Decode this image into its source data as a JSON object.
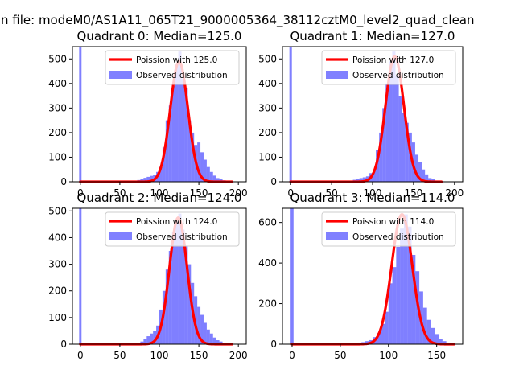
{
  "suptitle": "n file: modeM0/AS1A11_065T21_9000005364_38112cztM0_level2_quad_clean",
  "colors": {
    "poisson_line": "#ff0000",
    "histogram": "#8080ff",
    "axes": "#000000",
    "background": "#ffffff"
  },
  "chart_data": [
    {
      "type": "bar",
      "title": "Quadrant 0: Median=125.0",
      "xlim": [
        -10,
        210
      ],
      "ylim": [
        0,
        550
      ],
      "xticks": [
        0,
        50,
        100,
        150,
        200
      ],
      "yticks": [
        0,
        100,
        200,
        300,
        400,
        500
      ],
      "legend_position": "top-right",
      "poisson": {
        "label": "Poission with 125.0",
        "mean": 125.0,
        "scale": 490
      },
      "histogram": {
        "label": "Observed distribution",
        "bin_width": 4,
        "spike": {
          "x": 0,
          "value": 550
        },
        "bins": [
          [
            68,
            3
          ],
          [
            72,
            7
          ],
          [
            76,
            10
          ],
          [
            80,
            16
          ],
          [
            84,
            20
          ],
          [
            88,
            24
          ],
          [
            92,
            28
          ],
          [
            96,
            40
          ],
          [
            100,
            60
          ],
          [
            104,
            140
          ],
          [
            108,
            250
          ],
          [
            112,
            310
          ],
          [
            116,
            390
          ],
          [
            120,
            480
          ],
          [
            124,
            530
          ],
          [
            128,
            420
          ],
          [
            132,
            380
          ],
          [
            136,
            250
          ],
          [
            140,
            200
          ],
          [
            144,
            150
          ],
          [
            148,
            160
          ],
          [
            152,
            120
          ],
          [
            156,
            90
          ],
          [
            160,
            60
          ],
          [
            164,
            40
          ],
          [
            168,
            25
          ],
          [
            172,
            15
          ],
          [
            176,
            10
          ],
          [
            180,
            6
          ],
          [
            184,
            4
          ],
          [
            188,
            2
          ]
        ]
      }
    },
    {
      "type": "bar",
      "title": "Quadrant 1: Median=127.0",
      "xlim": [
        -10,
        210
      ],
      "ylim": [
        0,
        550
      ],
      "xticks": [
        0,
        50,
        100,
        150,
        200
      ],
      "yticks": [
        0,
        100,
        200,
        300,
        400,
        500
      ],
      "legend_position": "top-right",
      "poisson": {
        "label": "Poission with 127.0",
        "mean": 127.0,
        "scale": 510
      },
      "histogram": {
        "label": "Observed distribution",
        "bin_width": 4,
        "spike": {
          "x": 0,
          "value": 550
        },
        "bins": [
          [
            72,
            4
          ],
          [
            76,
            8
          ],
          [
            80,
            12
          ],
          [
            84,
            15
          ],
          [
            88,
            18
          ],
          [
            92,
            22
          ],
          [
            96,
            35
          ],
          [
            100,
            50
          ],
          [
            104,
            130
          ],
          [
            108,
            200
          ],
          [
            112,
            300
          ],
          [
            116,
            400
          ],
          [
            120,
            490
          ],
          [
            124,
            530
          ],
          [
            128,
            430
          ],
          [
            132,
            350
          ],
          [
            136,
            280
          ],
          [
            140,
            240
          ],
          [
            144,
            200
          ],
          [
            148,
            160
          ],
          [
            152,
            110
          ],
          [
            156,
            80
          ],
          [
            160,
            50
          ],
          [
            164,
            30
          ],
          [
            168,
            15
          ],
          [
            172,
            10
          ],
          [
            176,
            5
          ],
          [
            180,
            3
          ]
        ]
      }
    },
    {
      "type": "bar",
      "title": "Quadrant 2: Median=124.0",
      "xlim": [
        -10,
        210
      ],
      "ylim": [
        0,
        510
      ],
      "xticks": [
        0,
        50,
        100,
        150,
        200
      ],
      "yticks": [
        0,
        100,
        200,
        300,
        400,
        500
      ],
      "legend_position": "top-right",
      "poisson": {
        "label": "Poission with 124.0",
        "mean": 124.0,
        "scale": 475
      },
      "histogram": {
        "label": "Observed distribution",
        "bin_width": 4,
        "spike": {
          "x": 0,
          "value": 510
        },
        "bins": [
          [
            72,
            6
          ],
          [
            76,
            10
          ],
          [
            80,
            20
          ],
          [
            84,
            30
          ],
          [
            88,
            40
          ],
          [
            92,
            50
          ],
          [
            96,
            70
          ],
          [
            100,
            130
          ],
          [
            104,
            200
          ],
          [
            108,
            280
          ],
          [
            112,
            350
          ],
          [
            116,
            420
          ],
          [
            120,
            460
          ],
          [
            124,
            490
          ],
          [
            128,
            430
          ],
          [
            132,
            370
          ],
          [
            136,
            300
          ],
          [
            140,
            230
          ],
          [
            144,
            180
          ],
          [
            148,
            140
          ],
          [
            152,
            110
          ],
          [
            156,
            80
          ],
          [
            160,
            55
          ],
          [
            164,
            40
          ],
          [
            168,
            25
          ],
          [
            172,
            15
          ],
          [
            176,
            10
          ],
          [
            180,
            5
          ],
          [
            184,
            3
          ],
          [
            188,
            2
          ]
        ]
      }
    },
    {
      "type": "bar",
      "title": "Quadrant 3: Median=114.0",
      "xlim": [
        -10,
        177
      ],
      "ylim": [
        0,
        670
      ],
      "xticks": [
        0,
        50,
        100,
        150
      ],
      "yticks": [
        0,
        200,
        400,
        600
      ],
      "legend_position": "top-right",
      "poisson": {
        "label": "Poission with 114.0",
        "mean": 114.0,
        "scale": 640
      },
      "histogram": {
        "label": "Observed distribution",
        "bin_width": 4,
        "spike": {
          "x": 0,
          "value": 670
        },
        "bins": [
          [
            64,
            5
          ],
          [
            68,
            8
          ],
          [
            72,
            10
          ],
          [
            76,
            15
          ],
          [
            80,
            20
          ],
          [
            84,
            35
          ],
          [
            88,
            55
          ],
          [
            92,
            100
          ],
          [
            96,
            160
          ],
          [
            100,
            300
          ],
          [
            104,
            380
          ],
          [
            108,
            480
          ],
          [
            112,
            570
          ],
          [
            116,
            640
          ],
          [
            120,
            580
          ],
          [
            124,
            440
          ],
          [
            128,
            360
          ],
          [
            132,
            260
          ],
          [
            136,
            180
          ],
          [
            140,
            120
          ],
          [
            144,
            80
          ],
          [
            148,
            50
          ],
          [
            152,
            25
          ],
          [
            156,
            15
          ],
          [
            160,
            8
          ],
          [
            164,
            4
          ]
        ]
      }
    }
  ]
}
